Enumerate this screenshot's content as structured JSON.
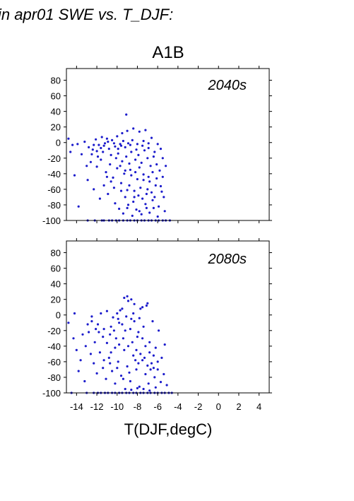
{
  "header_text": "in apr01 SWE vs. T_DJF:",
  "scenario_title": "A1B",
  "xlabel": "T(DJF,degC)",
  "colors": {
    "points": "#1c1ccc",
    "axes": "#000000",
    "background": "#ffffff"
  },
  "chart_data": [
    {
      "type": "scatter",
      "panel_label": "2040s",
      "xlim": [
        -15,
        5
      ],
      "ylim": [
        -100,
        95
      ],
      "x_ticks": [
        -14,
        -12,
        -10,
        -8,
        -6,
        -4,
        -2,
        0,
        2,
        4
      ],
      "y_ticks": [
        -100,
        -80,
        -60,
        -40,
        -20,
        0,
        20,
        40,
        60,
        80
      ],
      "y_tick_labels": [
        "-100",
        "-80",
        "-60",
        "-40",
        "-20",
        "0",
        "20",
        "40",
        "60",
        "80"
      ],
      "show_x_tick_labels": false,
      "grid": false,
      "points": [
        [
          -14.8,
          5
        ],
        [
          -14.4,
          -3
        ],
        [
          -14.6,
          -12
        ],
        [
          -13.9,
          -2
        ],
        [
          -13.2,
          1
        ],
        [
          -12.8,
          -6
        ],
        [
          -13.5,
          -15
        ],
        [
          -12.4,
          -9
        ],
        [
          -12.1,
          4
        ],
        [
          -11.8,
          -3
        ],
        [
          -11.5,
          7
        ],
        [
          -11.2,
          -1
        ],
        [
          -11.0,
          5
        ],
        [
          -10.8,
          -8
        ],
        [
          -10.5,
          3
        ],
        [
          -10.2,
          -5
        ],
        [
          -10.0,
          8
        ],
        [
          -9.7,
          -2
        ],
        [
          -9.5,
          12
        ],
        [
          -9.2,
          -6
        ],
        [
          -9.0,
          15
        ],
        [
          -8.7,
          -3
        ],
        [
          -8.4,
          18
        ],
        [
          -8.1,
          -9
        ],
        [
          -7.8,
          14
        ],
        [
          -7.5,
          -4
        ],
        [
          -7.2,
          16
        ],
        [
          -6.9,
          -7
        ],
        [
          -6.6,
          6
        ],
        [
          -6.3,
          -12
        ],
        [
          -6.0,
          -2
        ],
        [
          -5.7,
          -8
        ],
        [
          -5.5,
          -20
        ],
        [
          -12.6,
          -25
        ],
        [
          -12.0,
          -31
        ],
        [
          -11.6,
          -22
        ],
        [
          -11.1,
          -38
        ],
        [
          -10.7,
          -28
        ],
        [
          -10.4,
          -45
        ],
        [
          -10.0,
          -33
        ],
        [
          -9.6,
          -52
        ],
        [
          -9.3,
          -40
        ],
        [
          -9.0,
          -61
        ],
        [
          -8.7,
          -35
        ],
        [
          -8.3,
          -70
        ],
        [
          -8.0,
          -47
        ],
        [
          -7.7,
          -58
        ],
        [
          -7.4,
          -41
        ],
        [
          -7.1,
          -66
        ],
        [
          -6.8,
          -50
        ],
        [
          -6.5,
          -74
        ],
        [
          -6.2,
          -55
        ],
        [
          -5.9,
          -82
        ],
        [
          -5.6,
          -63
        ],
        [
          -5.3,
          -88
        ],
        [
          -10.2,
          -78
        ],
        [
          -9.8,
          -85
        ],
        [
          -9.4,
          -91
        ],
        [
          -8.9,
          -80
        ],
        [
          -8.5,
          -94
        ],
        [
          -8.1,
          -86
        ],
        [
          -7.6,
          -92
        ],
        [
          -7.2,
          -79
        ],
        [
          -6.8,
          -90
        ],
        [
          -6.4,
          -84
        ],
        [
          -6.0,
          -95
        ],
        [
          -13.8,
          -82
        ],
        [
          -12.9,
          -48
        ],
        [
          -12.3,
          -60
        ],
        [
          -11.7,
          -72
        ],
        [
          -11.3,
          -55
        ],
        [
          -10.9,
          -66
        ],
        [
          -9.1,
          36
        ],
        [
          -13.0,
          -30
        ],
        [
          -14.2,
          -42
        ],
        [
          -12.5,
          -15
        ],
        [
          -11.9,
          -18
        ],
        [
          -11.4,
          -12
        ],
        [
          -10.6,
          -16
        ],
        [
          -10.1,
          -20
        ],
        [
          -9.9,
          -14
        ],
        [
          -9.5,
          -24
        ],
        [
          -9.1,
          -18
        ],
        [
          -8.8,
          -27
        ],
        [
          -8.6,
          -12
        ],
        [
          -8.2,
          -22
        ],
        [
          -7.9,
          -16
        ],
        [
          -7.6,
          -26
        ],
        [
          -7.3,
          -10
        ],
        [
          -7.0,
          -20
        ],
        [
          -6.7,
          -30
        ],
        [
          -6.4,
          -18
        ],
        [
          -6.1,
          -28
        ],
        [
          -5.8,
          -36
        ],
        [
          -5.5,
          -44
        ],
        [
          -5.2,
          -30
        ],
        [
          -12.9,
          -100
        ],
        [
          -12.2,
          -100
        ],
        [
          -11.5,
          -100
        ],
        [
          -10.8,
          -100
        ],
        [
          -10.1,
          -100
        ],
        [
          -9.4,
          -100
        ],
        [
          -8.7,
          -100
        ],
        [
          -8.0,
          -100
        ],
        [
          -7.3,
          -100
        ],
        [
          -6.6,
          -100
        ],
        [
          -5.9,
          -100
        ],
        [
          -5.2,
          -100
        ],
        [
          -4.8,
          -100
        ],
        [
          -11.3,
          -100
        ],
        [
          -10.5,
          -100
        ],
        [
          -9.8,
          -100
        ],
        [
          -9.0,
          -100
        ],
        [
          -8.3,
          -100
        ],
        [
          -7.6,
          -100
        ],
        [
          -6.9,
          -100
        ],
        [
          -6.2,
          -100
        ],
        [
          -5.5,
          -100
        ],
        [
          -9.9,
          -8
        ],
        [
          -9.6,
          -4
        ],
        [
          -10.3,
          -1
        ],
        [
          -10.9,
          1
        ],
        [
          -11.3,
          -4
        ],
        [
          -9.4,
          2
        ],
        [
          -8.9,
          -1
        ],
        [
          -8.5,
          3
        ],
        [
          -8.0,
          -2
        ],
        [
          -7.4,
          2
        ],
        [
          -6.9,
          -1
        ],
        [
          -11.6,
          -7
        ],
        [
          -12.0,
          -11
        ],
        [
          -12.3,
          -3
        ],
        [
          -9.7,
          -30
        ],
        [
          -9.2,
          -36
        ],
        [
          -8.6,
          -42
        ],
        [
          -8.2,
          -38
        ],
        [
          -7.8,
          -32
        ],
        [
          -7.4,
          -48
        ],
        [
          -6.9,
          -44
        ],
        [
          -6.5,
          -38
        ],
        [
          -6.1,
          -46
        ],
        [
          -8.8,
          -55
        ],
        [
          -8.3,
          -62
        ],
        [
          -7.9,
          -68
        ],
        [
          -7.5,
          -72
        ],
        [
          -7.0,
          -60
        ],
        [
          -6.6,
          -64
        ],
        [
          -9.2,
          -70
        ],
        [
          -9.6,
          -62
        ],
        [
          -10.3,
          -58
        ],
        [
          -10.6,
          -50
        ],
        [
          -11.0,
          -44
        ],
        [
          -9.0,
          -84
        ],
        [
          -8.4,
          -76
        ],
        [
          -7.8,
          -88
        ],
        [
          -7.1,
          -84
        ],
        [
          -6.3,
          -70
        ],
        [
          -5.7,
          -56
        ],
        [
          -5.4,
          -70
        ]
      ]
    },
    {
      "type": "scatter",
      "panel_label": "2080s",
      "xlim": [
        -15,
        5
      ],
      "ylim": [
        -100,
        95
      ],
      "x_ticks": [
        -14,
        -12,
        -10,
        -8,
        -6,
        -4,
        -2,
        0,
        2,
        4
      ],
      "x_tick_labels": [
        "-14",
        "-12",
        "-10",
        "-8",
        "-6",
        "-4",
        "-2",
        "0",
        "2",
        "4"
      ],
      "y_ticks": [
        -100,
        -80,
        -60,
        -40,
        -20,
        0,
        20,
        40,
        60,
        80
      ],
      "y_tick_labels": [
        "-100",
        "-80",
        "-60",
        "-40",
        "-20",
        "0",
        "20",
        "40",
        "60",
        "80"
      ],
      "show_x_tick_labels": true,
      "grid": false,
      "points": [
        [
          -14.8,
          -10
        ],
        [
          -14.3,
          -30
        ],
        [
          -14.0,
          -45
        ],
        [
          -13.6,
          -58
        ],
        [
          -13.1,
          -40
        ],
        [
          -12.8,
          -22
        ],
        [
          -12.5,
          -8
        ],
        [
          -12.2,
          -35
        ],
        [
          -11.9,
          -12
        ],
        [
          -11.6,
          2
        ],
        [
          -11.3,
          -18
        ],
        [
          -11.0,
          5
        ],
        [
          -10.7,
          -25
        ],
        [
          -10.4,
          -3
        ],
        [
          -10.1,
          -30
        ],
        [
          -9.8,
          -10
        ],
        [
          -9.5,
          8
        ],
        [
          -9.2,
          -20
        ],
        [
          -8.9,
          18
        ],
        [
          -8.6,
          -5
        ],
        [
          -8.3,
          14
        ],
        [
          -8.0,
          -28
        ],
        [
          -7.7,
          8
        ],
        [
          -7.4,
          -15
        ],
        [
          -7.1,
          12
        ],
        [
          -6.8,
          -35
        ],
        [
          -6.5,
          -8
        ],
        [
          -6.2,
          -42
        ],
        [
          -5.9,
          -20
        ],
        [
          -5.6,
          -55
        ],
        [
          -5.3,
          -38
        ],
        [
          -9.3,
          22
        ],
        [
          -9.0,
          24
        ],
        [
          -8.6,
          20
        ],
        [
          -7.5,
          10
        ],
        [
          -7.0,
          15
        ],
        [
          -12.6,
          -50
        ],
        [
          -12.3,
          -62
        ],
        [
          -12.0,
          -75
        ],
        [
          -11.7,
          -48
        ],
        [
          -11.4,
          -68
        ],
        [
          -11.1,
          -82
        ],
        [
          -10.8,
          -55
        ],
        [
          -10.5,
          -72
        ],
        [
          -10.2,
          -88
        ],
        [
          -9.9,
          -60
        ],
        [
          -9.6,
          -78
        ],
        [
          -9.3,
          -45
        ],
        [
          -9.0,
          -66
        ],
        [
          -8.7,
          -85
        ],
        [
          -8.4,
          -52
        ],
        [
          -8.1,
          -70
        ],
        [
          -7.8,
          -92
        ],
        [
          -7.5,
          -58
        ],
        [
          -7.2,
          -76
        ],
        [
          -6.9,
          -88
        ],
        [
          -6.6,
          -62
        ],
        [
          -6.3,
          -80
        ],
        [
          -6.0,
          -70
        ],
        [
          -5.7,
          -86
        ],
        [
          -5.4,
          -76
        ],
        [
          -5.1,
          -90
        ],
        [
          -13.2,
          -85
        ],
        [
          -13.8,
          -72
        ],
        [
          -14.5,
          -100
        ],
        [
          -13.0,
          -100
        ],
        [
          -12.3,
          -100
        ],
        [
          -11.6,
          -100
        ],
        [
          -10.9,
          -100
        ],
        [
          -10.2,
          -100
        ],
        [
          -9.5,
          -100
        ],
        [
          -8.8,
          -100
        ],
        [
          -8.1,
          -100
        ],
        [
          -7.4,
          -100
        ],
        [
          -6.7,
          -100
        ],
        [
          -6.0,
          -100
        ],
        [
          -5.3,
          -100
        ],
        [
          -4.6,
          -100
        ],
        [
          -11.9,
          -100
        ],
        [
          -11.2,
          -100
        ],
        [
          -10.5,
          -100
        ],
        [
          -9.8,
          -100
        ],
        [
          -9.1,
          -100
        ],
        [
          -8.4,
          -100
        ],
        [
          -7.7,
          -100
        ],
        [
          -7.0,
          -100
        ],
        [
          -6.3,
          -100
        ],
        [
          -5.6,
          -100
        ],
        [
          -4.9,
          -100
        ],
        [
          -10.6,
          -15
        ],
        [
          -10.3,
          -20
        ],
        [
          -9.9,
          -5
        ],
        [
          -9.5,
          -12
        ],
        [
          -9.1,
          -2
        ],
        [
          -8.7,
          -18
        ],
        [
          -8.3,
          -8
        ],
        [
          -7.9,
          -22
        ],
        [
          -7.5,
          -30
        ],
        [
          -7.2,
          -40
        ],
        [
          -6.8,
          -48
        ],
        [
          -6.4,
          -52
        ],
        [
          -6.0,
          -60
        ],
        [
          -8.9,
          -40
        ],
        [
          -8.5,
          -35
        ],
        [
          -8.1,
          -45
        ],
        [
          -7.7,
          -50
        ],
        [
          -7.3,
          -55
        ],
        [
          -9.4,
          -30
        ],
        [
          -9.8,
          -38
        ],
        [
          -10.2,
          -42
        ],
        [
          -10.6,
          -48
        ],
        [
          -11.0,
          -36
        ],
        [
          -11.4,
          -28
        ],
        [
          -11.8,
          -22
        ],
        [
          -12.1,
          -18
        ],
        [
          -9.2,
          -95
        ],
        [
          -8.6,
          -96
        ],
        [
          -8.0,
          -94
        ],
        [
          -7.4,
          -95
        ],
        [
          -6.8,
          -97
        ],
        [
          -6.2,
          -93
        ],
        [
          -7.0,
          -65
        ],
        [
          -6.7,
          -70
        ],
        [
          -6.4,
          -68
        ],
        [
          -7.9,
          -62
        ],
        [
          -8.2,
          -58
        ],
        [
          -8.8,
          -74
        ],
        [
          -9.4,
          -82
        ],
        [
          -10.0,
          -68
        ],
        [
          -10.7,
          -62
        ],
        [
          -11.3,
          -58
        ],
        [
          -12.5,
          -2
        ],
        [
          -12.9,
          -12
        ],
        [
          -13.4,
          -25
        ],
        [
          -14.2,
          2
        ],
        [
          -10.0,
          2
        ],
        [
          -9.7,
          6
        ],
        [
          -8.4,
          2
        ],
        [
          -7.8,
          -4
        ]
      ]
    }
  ]
}
